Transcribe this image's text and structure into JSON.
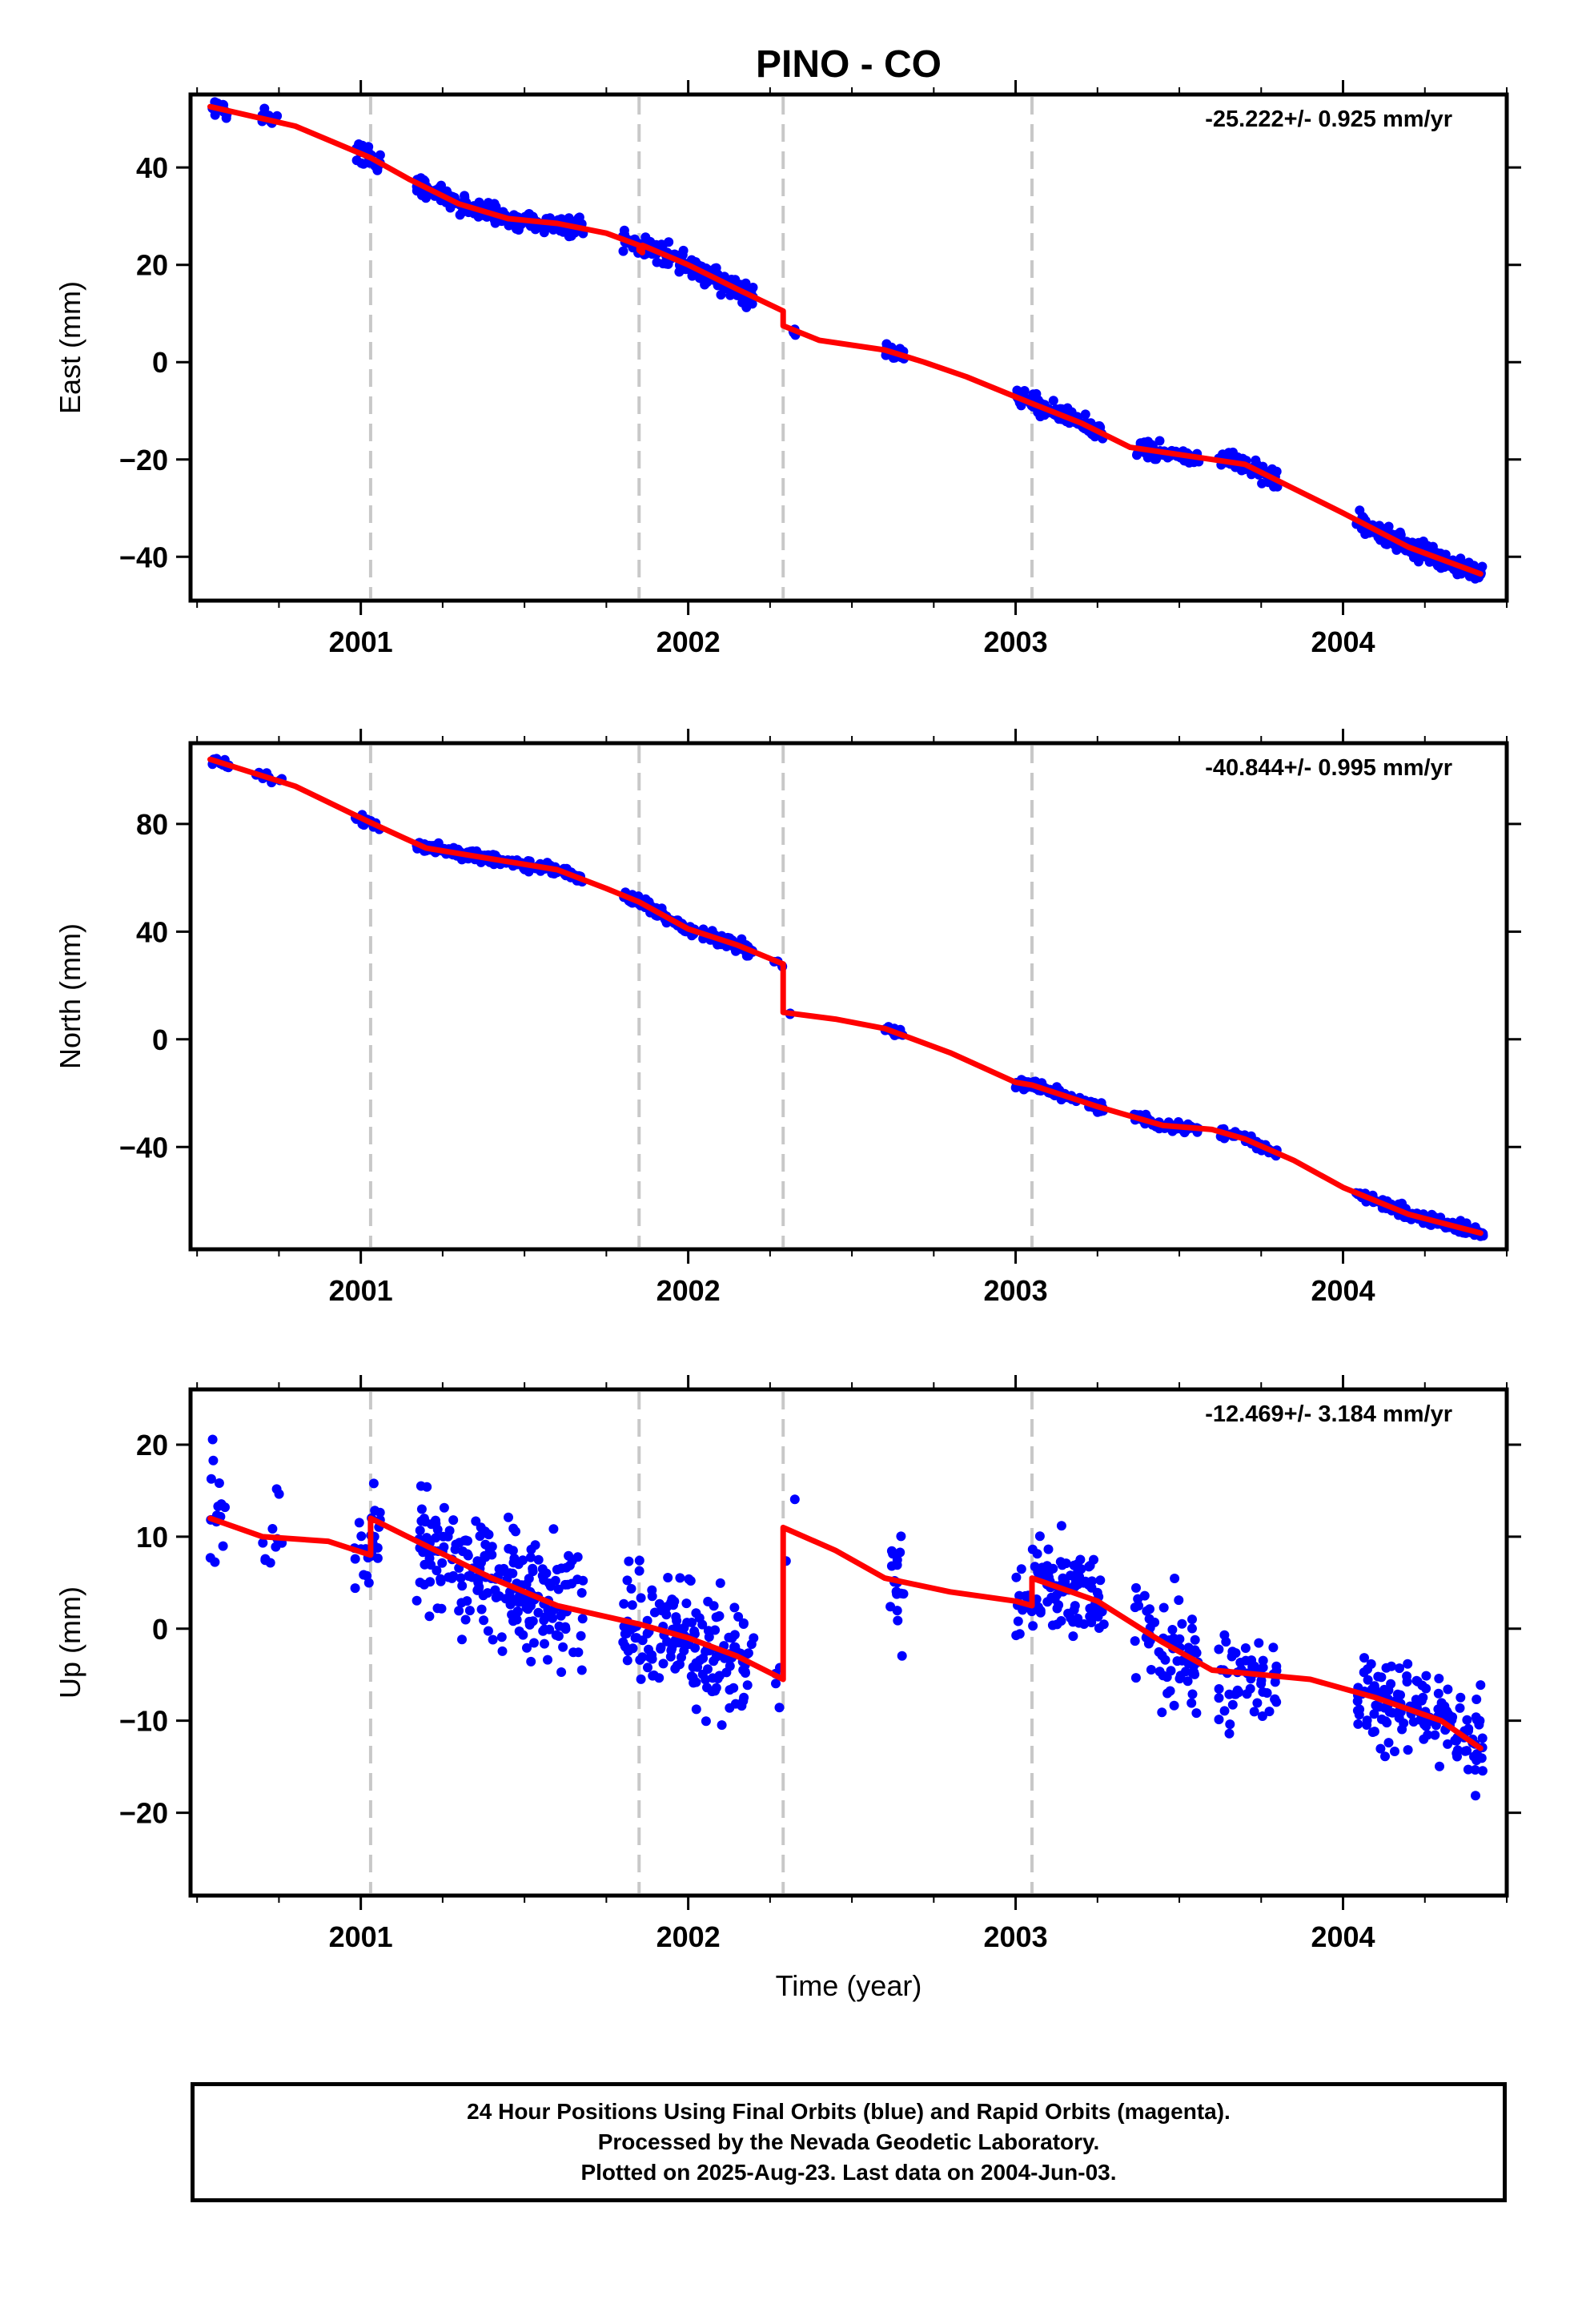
{
  "chart_data": {
    "title": "PINO - CO",
    "xlabel": "Time (year)",
    "x_ticks": [
      "2001",
      "2002",
      "2003",
      "2004"
    ],
    "xlim": [
      2000.48,
      2004.5
    ],
    "vertical_lines_year": [
      2001.03,
      2001.85,
      2002.29,
      2003.05
    ],
    "panels": [
      {
        "name": "east",
        "type": "scatter",
        "ylabel": "East (mm)",
        "rate_label": "-25.222+/- 0.925 mm/yr",
        "ylim": [
          -49,
          55
        ],
        "y_ticks": [
          40,
          20,
          0,
          -20,
          -40
        ],
        "y_tick_labels": [
          "40",
          "20",
          "0",
          "−20",
          "−40"
        ],
        "fit_line": [
          [
            2000.54,
            52.5
          ],
          [
            2000.8,
            48.5
          ],
          [
            2001.03,
            42.0
          ],
          [
            2001.15,
            37.5
          ],
          [
            2001.3,
            32.5
          ],
          [
            2001.45,
            29.5
          ],
          [
            2001.6,
            28.5
          ],
          [
            2001.75,
            26.5
          ],
          [
            2001.85,
            24.0
          ],
          [
            2001.85,
            23.0
          ],
          [
            2001.86,
            22.5
          ],
          [
            2001.86,
            24.0
          ],
          [
            2002.0,
            20.0
          ],
          [
            2002.15,
            15.0
          ],
          [
            2002.29,
            10.5
          ],
          [
            2002.29,
            7.5
          ],
          [
            2002.4,
            4.5
          ],
          [
            2002.6,
            2.5
          ],
          [
            2002.72,
            0.0
          ],
          [
            2002.85,
            -3.0
          ],
          [
            2003.05,
            -8.5
          ],
          [
            2003.2,
            -12.5
          ],
          [
            2003.35,
            -17.5
          ],
          [
            2003.55,
            -19.5
          ],
          [
            2003.7,
            -21.0
          ],
          [
            2003.85,
            -26.0
          ],
          [
            2004.0,
            -31.0
          ],
          [
            2004.2,
            -38.0
          ],
          [
            2004.42,
            -43.5
          ]
        ],
        "clusters": [
          {
            "t0": 2000.54,
            "t1": 2000.6,
            "n": 14,
            "noise": 1.6
          },
          {
            "t0": 2000.68,
            "t1": 2000.76,
            "n": 10,
            "noise": 1.6
          },
          {
            "t0": 2000.98,
            "t1": 2001.06,
            "n": 24,
            "noise": 2.0
          },
          {
            "t0": 2001.17,
            "t1": 2001.68,
            "n": 220,
            "noise": 1.6
          },
          {
            "t0": 2001.8,
            "t1": 2002.2,
            "n": 170,
            "noise": 1.9
          },
          {
            "t0": 2002.26,
            "t1": 2002.33,
            "n": 6,
            "noise": 2.0
          },
          {
            "t0": 2002.6,
            "t1": 2002.66,
            "n": 18,
            "noise": 1.1
          },
          {
            "t0": 2003.0,
            "t1": 2003.27,
            "n": 110,
            "noise": 1.6
          },
          {
            "t0": 2003.36,
            "t1": 2003.56,
            "n": 65,
            "noise": 1.5
          },
          {
            "t0": 2003.62,
            "t1": 2003.8,
            "n": 55,
            "noise": 1.6
          },
          {
            "t0": 2004.04,
            "t1": 2004.43,
            "n": 150,
            "noise": 1.6
          }
        ]
      },
      {
        "name": "north",
        "type": "scatter",
        "ylabel": "North (mm)",
        "rate_label": "-40.844+/- 0.995 mm/yr",
        "ylim": [
          -78,
          110
        ],
        "y_ticks": [
          80,
          40,
          0,
          -40
        ],
        "y_tick_labels": [
          "80",
          "40",
          "0",
          "−40"
        ],
        "fit_line": [
          [
            2000.54,
            104.0
          ],
          [
            2000.8,
            94.0
          ],
          [
            2001.03,
            80.5
          ],
          [
            2001.2,
            71.0
          ],
          [
            2001.4,
            67.0
          ],
          [
            2001.6,
            63.0
          ],
          [
            2001.75,
            56.0
          ],
          [
            2001.85,
            51.0
          ],
          [
            2002.0,
            41.0
          ],
          [
            2002.15,
            35.0
          ],
          [
            2002.29,
            28.0
          ],
          [
            2002.29,
            10.0
          ],
          [
            2002.45,
            7.5
          ],
          [
            2002.6,
            4.0
          ],
          [
            2002.8,
            -5.0
          ],
          [
            2003.0,
            -16.0
          ],
          [
            2003.05,
            -17.0
          ],
          [
            2003.25,
            -25.0
          ],
          [
            2003.45,
            -32.0
          ],
          [
            2003.6,
            -33.5
          ],
          [
            2003.7,
            -37.0
          ],
          [
            2003.85,
            -45.0
          ],
          [
            2004.0,
            -55.0
          ],
          [
            2004.2,
            -65.0
          ],
          [
            2004.42,
            -72.0
          ]
        ],
        "clusters": [
          {
            "t0": 2000.54,
            "t1": 2000.6,
            "n": 14,
            "noise": 1.4
          },
          {
            "t0": 2000.68,
            "t1": 2000.76,
            "n": 10,
            "noise": 1.6
          },
          {
            "t0": 2000.98,
            "t1": 2001.06,
            "n": 24,
            "noise": 1.6
          },
          {
            "t0": 2001.17,
            "t1": 2001.68,
            "n": 220,
            "noise": 1.6
          },
          {
            "t0": 2001.8,
            "t1": 2002.2,
            "n": 170,
            "noise": 1.8
          },
          {
            "t0": 2002.26,
            "t1": 2002.33,
            "n": 6,
            "noise": 2.5
          },
          {
            "t0": 2002.6,
            "t1": 2002.66,
            "n": 18,
            "noise": 1.3
          },
          {
            "t0": 2003.0,
            "t1": 2003.27,
            "n": 110,
            "noise": 1.6
          },
          {
            "t0": 2003.36,
            "t1": 2003.56,
            "n": 65,
            "noise": 1.5
          },
          {
            "t0": 2003.62,
            "t1": 2003.8,
            "n": 55,
            "noise": 1.6
          },
          {
            "t0": 2004.04,
            "t1": 2004.43,
            "n": 150,
            "noise": 1.7
          }
        ]
      },
      {
        "name": "up",
        "type": "scatter",
        "ylabel": "Up (mm)",
        "rate_label": "-12.469+/- 3.184 mm/yr",
        "ylim": [
          -29,
          26
        ],
        "y_ticks": [
          20,
          10,
          0,
          -10,
          -20
        ],
        "y_tick_labels": [
          "20",
          "10",
          "0",
          "−10",
          "−20"
        ],
        "fit_line": [
          [
            2000.54,
            12.0
          ],
          [
            2000.7,
            10.0
          ],
          [
            2000.9,
            9.5
          ],
          [
            2001.03,
            8.0
          ],
          [
            2001.03,
            12.0
          ],
          [
            2001.2,
            9.0
          ],
          [
            2001.4,
            5.5
          ],
          [
            2001.6,
            2.5
          ],
          [
            2001.85,
            0.5
          ],
          [
            2002.0,
            -1.0
          ],
          [
            2002.15,
            -3.0
          ],
          [
            2002.29,
            -5.5
          ],
          [
            2002.29,
            11.0
          ],
          [
            2002.45,
            8.5
          ],
          [
            2002.6,
            5.5
          ],
          [
            2002.8,
            4.0
          ],
          [
            2003.0,
            3.0
          ],
          [
            2003.05,
            2.5
          ],
          [
            2003.05,
            5.5
          ],
          [
            2003.25,
            3.0
          ],
          [
            2003.45,
            -1.5
          ],
          [
            2003.6,
            -4.5
          ],
          [
            2003.75,
            -5.0
          ],
          [
            2003.9,
            -5.5
          ],
          [
            2004.1,
            -7.5
          ],
          [
            2004.3,
            -10.0
          ],
          [
            2004.42,
            -13.0
          ]
        ],
        "clusters": [
          {
            "t0": 2000.54,
            "t1": 2000.6,
            "n": 14,
            "noise": 6.0
          },
          {
            "t0": 2000.68,
            "t1": 2000.76,
            "n": 10,
            "noise": 6.0
          },
          {
            "t0": 2000.98,
            "t1": 2001.06,
            "n": 24,
            "noise": 4.0
          },
          {
            "t0": 2001.17,
            "t1": 2001.68,
            "n": 220,
            "noise": 5.5
          },
          {
            "t0": 2001.8,
            "t1": 2002.2,
            "n": 170,
            "noise": 5.5
          },
          {
            "t0": 2002.26,
            "t1": 2002.33,
            "n": 6,
            "noise": 5.0
          },
          {
            "t0": 2002.6,
            "t1": 2002.66,
            "n": 18,
            "noise": 5.5
          },
          {
            "t0": 2003.0,
            "t1": 2003.27,
            "n": 110,
            "noise": 4.5
          },
          {
            "t0": 2003.36,
            "t1": 2003.56,
            "n": 65,
            "noise": 5.0
          },
          {
            "t0": 2003.62,
            "t1": 2003.8,
            "n": 55,
            "noise": 5.5
          },
          {
            "t0": 2004.04,
            "t1": 2004.43,
            "n": 150,
            "noise": 4.0
          }
        ]
      }
    ],
    "colors": {
      "points": "#0000ff",
      "fit": "#ff0000",
      "vlines": "#c8c8c8"
    }
  },
  "footer": {
    "line1": "24 Hour Positions Using Final Orbits (blue) and Rapid Orbits (magenta).",
    "line2": "Processed by the Nevada Geodetic Laboratory.",
    "line3": "Plotted on 2025-Aug-23. Last data on 2004-Jun-03."
  }
}
